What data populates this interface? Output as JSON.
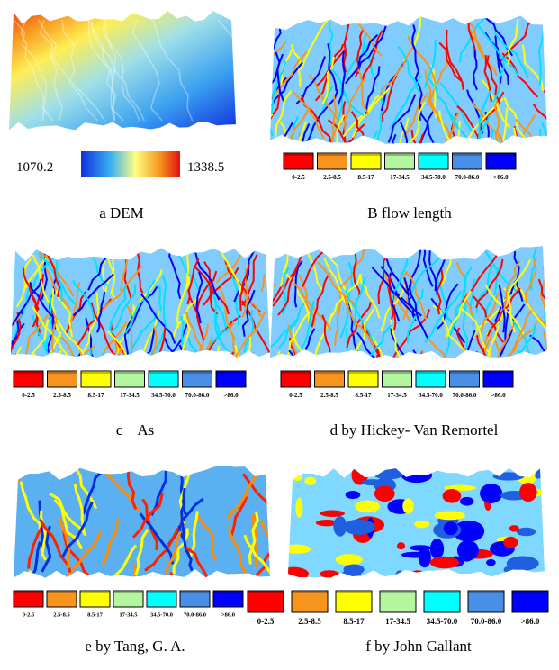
{
  "panels": [
    {
      "caption": "a DEM",
      "colorbar": {
        "min_label": "1070.2",
        "max_label": "1338.5"
      }
    },
    {
      "caption": "B flow length"
    },
    {
      "caption": "c    As"
    },
    {
      "caption": "d by Hickey- Van Remortel"
    },
    {
      "caption": "e by Tang, G. A."
    },
    {
      "caption": "f by John Gallant"
    }
  ],
  "legend": [
    {
      "label": "0-2.5",
      "color": "#ff0000"
    },
    {
      "label": "2.5-8.5",
      "color": "#f7941d"
    },
    {
      "label": "8.5-17",
      "color": "#ffff00"
    },
    {
      "label": "17-34.5",
      "color": "#b4f5a0"
    },
    {
      "label": "34.5-70.0",
      "color": "#00ffff"
    },
    {
      "label": "70.0-86.0",
      "color": "#4a8fe7"
    },
    {
      "label": ">86.0",
      "color": "#0000ff"
    }
  ]
}
